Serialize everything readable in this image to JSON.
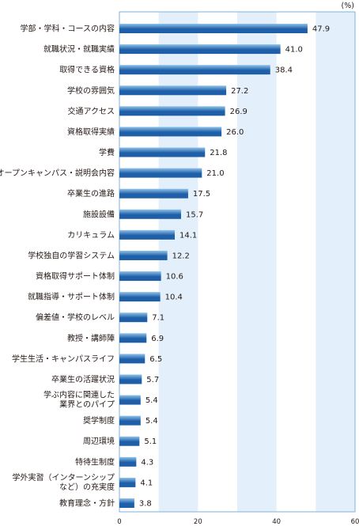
{
  "chart_data": {
    "type": "bar",
    "orientation": "horizontal",
    "unit": "(%)",
    "categories": [
      "学部・学科・コースの内容",
      "就職状況・就職実績",
      "取得できる資格",
      "学校の雰囲気",
      "交通アクセス",
      "資格取得実績",
      "学費",
      "オープンキャンパス・説明会内容",
      "卒業生の進路",
      "施設設備",
      "カリキュラム",
      "学校独自の学習システム",
      "資格取得サポート体制",
      "就職指導・サポート体制",
      "偏差値・学校のレベル",
      "教授・講師陣",
      "学生生活・キャンパスライフ",
      "卒業生の活躍状況",
      "学ぶ内容に関連した\n業界とのパイプ",
      "奨学制度",
      "周辺環境",
      "特待生制度",
      "学外実習（インターンシップ\nなど）の充実度",
      "教育理念・方針"
    ],
    "values": [
      47.9,
      41.0,
      38.4,
      27.2,
      26.9,
      26.0,
      21.8,
      21.0,
      17.5,
      15.7,
      14.1,
      12.2,
      10.6,
      10.4,
      7.1,
      6.9,
      6.5,
      5.7,
      5.4,
      5.4,
      5.1,
      4.3,
      4.1,
      3.8
    ],
    "value_labels": [
      "47.9",
      "41.0",
      "38.4",
      "27.2",
      "26.9",
      "26.0",
      "21.8",
      "21.0",
      "17.5",
      "15.7",
      "14.1",
      "12.2",
      "10.6",
      "10.4",
      "7.1",
      "6.9",
      "6.5",
      "5.7",
      "5.4",
      "5.4",
      "5.1",
      "4.3",
      "4.1",
      "3.8"
    ],
    "xlim": [
      0,
      60
    ],
    "xticks": [
      "0",
      "20",
      "40",
      "60"
    ],
    "legend": "none",
    "colors": {
      "bar_dark": "#1f5fa8",
      "bar_light": "#8fc3ea",
      "band": "#e3f0fb",
      "frame": "#7fb2dc"
    }
  }
}
